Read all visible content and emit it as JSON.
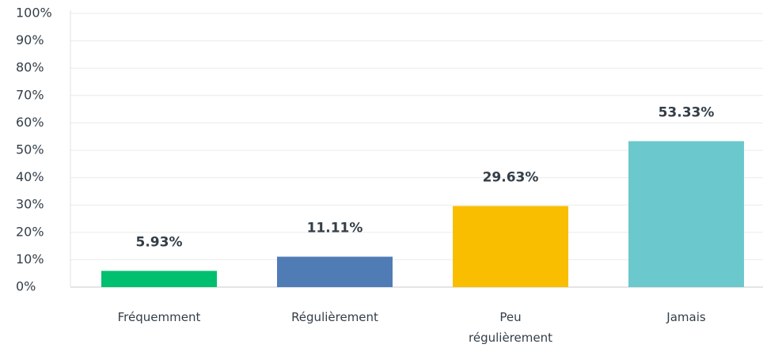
{
  "chart_data": {
    "type": "bar",
    "categories": [
      "Fréquemment",
      "Régulièrement",
      "Peu régulièrement",
      "Jamais"
    ],
    "values": [
      5.93,
      11.11,
      29.63,
      53.33
    ],
    "value_labels": [
      "5.93%",
      "11.11%",
      "29.63%",
      "53.33%"
    ],
    "colors": [
      "#00bf6f",
      "#507cb6",
      "#f9be00",
      "#6bc8cd"
    ],
    "ylim": [
      0,
      100
    ],
    "yticks": [
      {
        "value": 0,
        "label": "0%"
      },
      {
        "value": 10,
        "label": "10%"
      },
      {
        "value": 20,
        "label": "20%"
      },
      {
        "value": 30,
        "label": "30%"
      },
      {
        "value": 40,
        "label": "40%"
      },
      {
        "value": 50,
        "label": "50%"
      },
      {
        "value": 60,
        "label": "60%"
      },
      {
        "value": 70,
        "label": "70%"
      },
      {
        "value": 80,
        "label": "80%"
      },
      {
        "value": 90,
        "label": "90%"
      },
      {
        "value": 100,
        "label": "100%"
      }
    ],
    "grid": true
  }
}
